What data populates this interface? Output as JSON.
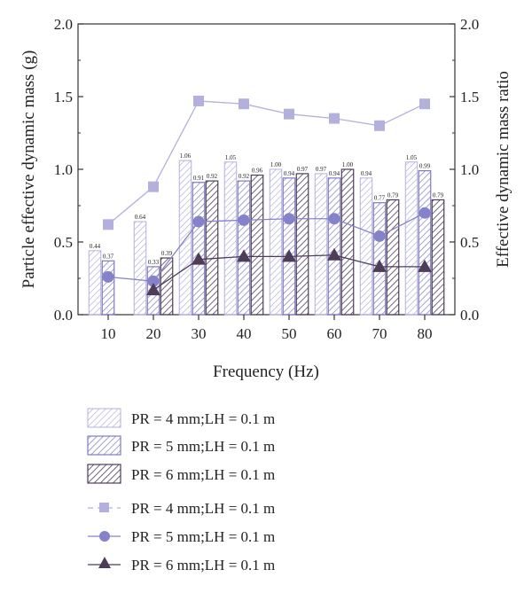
{
  "chart_data": {
    "type": "bar",
    "xlabel": "Frequency (Hz)",
    "ylabel_left": "Particle effective dynamic mass (g)",
    "ylabel_right": "Effective dynamic mass ratio",
    "categories": [
      "10",
      "20",
      "30",
      "40",
      "50",
      "60",
      "70",
      "80"
    ],
    "ylim_left": [
      0.0,
      2.0
    ],
    "ylim_right": [
      0.0,
      2.0
    ],
    "yticks_left": [
      "0.0",
      "0.5",
      "1.0",
      "1.5",
      "2.0"
    ],
    "yticks_right": [
      "0.0",
      "0.5",
      "1.0",
      "1.5",
      "2.0"
    ],
    "grid": false,
    "legend_position": "bottom",
    "bar_series": [
      {
        "name": "PR = 4 mm;LH = 0.1 m",
        "values": [
          0.44,
          0.64,
          1.06,
          1.05,
          1.0,
          0.97,
          0.94,
          1.05
        ],
        "labels": [
          "0.44",
          "0.64",
          "1.06",
          "1.05",
          "1.00",
          "0.97",
          "0.94",
          "1.05"
        ],
        "color": "#b3b0dc"
      },
      {
        "name": "PR = 5 mm;LH = 0.1 m",
        "values": [
          0.37,
          0.33,
          0.91,
          0.92,
          0.94,
          0.94,
          0.77,
          0.99
        ],
        "labels": [
          "0.37",
          "0.33",
          "0.91",
          "0.92",
          "0.94",
          "0.94",
          "0.77",
          "0.99"
        ],
        "color": "#7e7ac4"
      },
      {
        "name": "PR = 6 mm;LH = 0.1 m",
        "values": [
          null,
          0.39,
          0.92,
          0.96,
          0.97,
          1.0,
          0.79,
          0.79
        ],
        "labels": [
          "",
          "0.39",
          "0.92",
          "0.96",
          "0.97",
          "1.00",
          "0.79",
          "0.79"
        ],
        "color": "#4d3d59"
      }
    ],
    "line_series": [
      {
        "name": "PR = 4 mm;LH = 0.1 m",
        "marker": "square",
        "values": [
          0.62,
          0.88,
          1.47,
          1.45,
          1.38,
          1.35,
          1.3,
          1.45
        ],
        "color": "#b3b0dc"
      },
      {
        "name": "PR = 5 mm;LH = 0.1 m",
        "marker": "circle",
        "values": [
          0.26,
          0.23,
          0.64,
          0.65,
          0.66,
          0.66,
          0.54,
          0.7
        ],
        "color": "#8682c9"
      },
      {
        "name": "PR = 6 mm;LH = 0.1 m",
        "marker": "triangle",
        "values": [
          null,
          0.17,
          0.38,
          0.4,
          0.4,
          0.41,
          0.33,
          0.33
        ],
        "color": "#4d3d59"
      }
    ]
  }
}
